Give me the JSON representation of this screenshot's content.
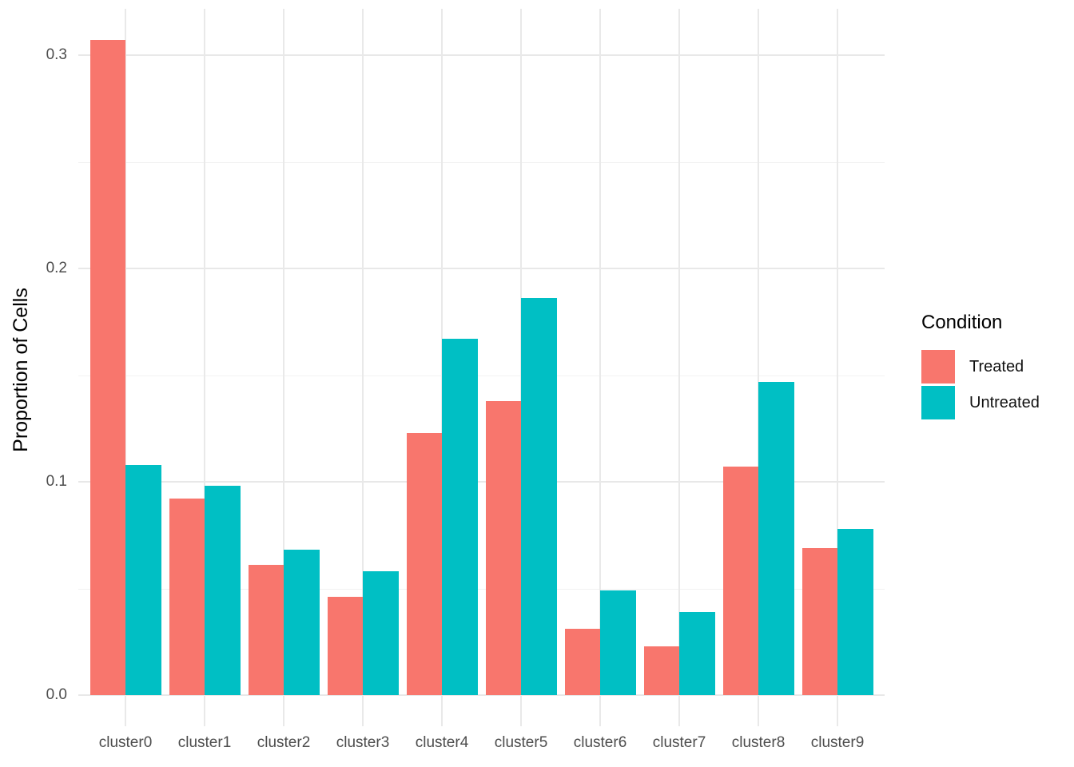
{
  "chart_data": {
    "type": "bar",
    "subtype": "grouped-dodged",
    "title": "",
    "xlabel": "",
    "ylabel": "Proportion of Cells",
    "categories": [
      "cluster0",
      "cluster1",
      "cluster2",
      "cluster3",
      "cluster4",
      "cluster5",
      "cluster6",
      "cluster7",
      "cluster8",
      "cluster9"
    ],
    "series": [
      {
        "name": "Treated",
        "color": "#F8766D",
        "values": [
          0.307,
          0.092,
          0.061,
          0.046,
          0.123,
          0.138,
          0.031,
          0.023,
          0.107,
          0.069
        ]
      },
      {
        "name": "Untreated",
        "color": "#00BFC4",
        "values": [
          0.108,
          0.098,
          0.068,
          0.058,
          0.167,
          0.186,
          0.049,
          0.039,
          0.147,
          0.078
        ]
      }
    ],
    "ylim": [
      0,
      0.32
    ],
    "yticks": [
      0.0,
      0.1,
      0.2,
      0.3
    ],
    "ytick_labels": [
      "0.0",
      "0.1",
      "0.2",
      "0.3"
    ],
    "yticks_minor": [
      0.05,
      0.15,
      0.25
    ],
    "grid": true,
    "legend": {
      "title": "Condition",
      "position": "right",
      "entries": [
        "Treated",
        "Untreated"
      ]
    },
    "colors": {
      "background": "#FFFFFF",
      "grid_major": "#E8E8E8",
      "grid_minor": "#F2F2F2",
      "axis_text": "#4D4D4D",
      "title_text": "#000000"
    }
  }
}
